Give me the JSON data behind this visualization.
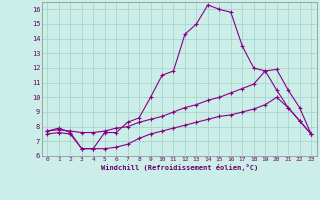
{
  "xlabel": "Windchill (Refroidissement éolien,°C)",
  "background_color": "#cceee8",
  "grid_color": "#aad4cc",
  "line_color": "#880088",
  "xlim": [
    -0.5,
    23.5
  ],
  "ylim": [
    6,
    16.5
  ],
  "yticks": [
    6,
    7,
    8,
    9,
    10,
    11,
    12,
    13,
    14,
    15,
    16
  ],
  "xticks": [
    0,
    1,
    2,
    3,
    4,
    5,
    6,
    7,
    8,
    9,
    10,
    11,
    12,
    13,
    14,
    15,
    16,
    17,
    18,
    19,
    20,
    21,
    22,
    23
  ],
  "series": [
    {
      "x": [
        0,
        1,
        2,
        3,
        4,
        5,
        6,
        7,
        8,
        9,
        10,
        11,
        12,
        13,
        14,
        15,
        16,
        17,
        18,
        19,
        20,
        21,
        22,
        23
      ],
      "y": [
        7.7,
        7.9,
        7.6,
        6.5,
        6.5,
        7.6,
        7.6,
        8.3,
        8.6,
        10.0,
        11.5,
        11.8,
        14.3,
        15.0,
        16.3,
        16.0,
        15.8,
        13.5,
        12.0,
        11.8,
        10.5,
        9.3,
        8.4,
        7.5
      ]
    },
    {
      "x": [
        0,
        1,
        2,
        3,
        4,
        5,
        6,
        7,
        8,
        9,
        10,
        11,
        12,
        13,
        14,
        15,
        16,
        17,
        18,
        19,
        20,
        21,
        22,
        23
      ],
      "y": [
        7.7,
        7.8,
        7.7,
        7.6,
        7.6,
        7.7,
        7.9,
        8.0,
        8.3,
        8.5,
        8.7,
        9.0,
        9.3,
        9.5,
        9.8,
        10.0,
        10.3,
        10.6,
        10.9,
        11.8,
        11.9,
        10.5,
        9.3,
        7.5
      ]
    },
    {
      "x": [
        0,
        1,
        2,
        3,
        4,
        5,
        6,
        7,
        8,
        9,
        10,
        11,
        12,
        13,
        14,
        15,
        16,
        17,
        18,
        19,
        20,
        21,
        22,
        23
      ],
      "y": [
        7.5,
        7.6,
        7.5,
        6.5,
        6.5,
        6.5,
        6.6,
        6.8,
        7.2,
        7.5,
        7.7,
        7.9,
        8.1,
        8.3,
        8.5,
        8.7,
        8.8,
        9.0,
        9.2,
        9.5,
        10.0,
        9.3,
        8.4,
        7.5
      ]
    }
  ]
}
